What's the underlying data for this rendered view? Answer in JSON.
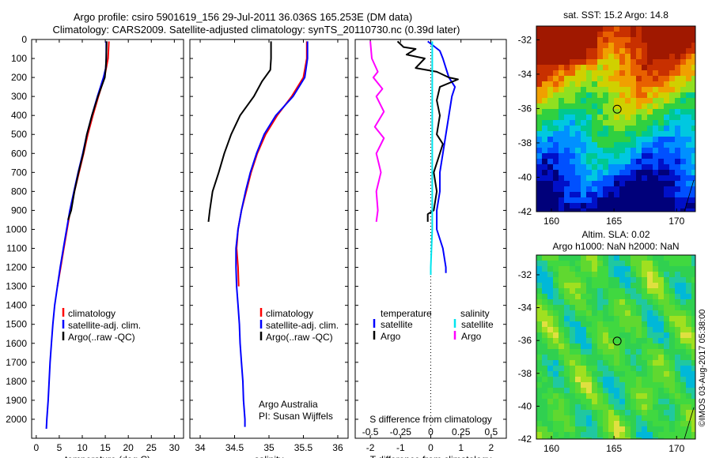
{
  "header": {
    "line1": "Argo profile: csiro 5901619_156 29-Jul-2011 36.036S 165.253E (DM data)",
    "line2": "Climatology: CARS2009. Satellite-adjusted climatology: synTS_20110730.nc (0.39d later)"
  },
  "colors": {
    "climatology": "#ff0000",
    "satellite": "#0000ff",
    "argo": "#000000",
    "t_satellite": "#0000ff",
    "s_satellite": "#00e5ee",
    "s_argo": "#ff00ff"
  },
  "chart_data": [
    {
      "type": "line",
      "panel": "temperature",
      "xlabel": "temperature (deg C)",
      "ylabel": "",
      "xlim": [
        -1,
        32
      ],
      "ylim": [
        2100,
        0
      ],
      "xticks": [
        "0",
        "5",
        "10",
        "15",
        "20",
        "25",
        "30"
      ],
      "yticks": [
        "0",
        "100",
        "200",
        "300",
        "400",
        "500",
        "600",
        "700",
        "800",
        "900",
        "1000",
        "1100",
        "1200",
        "1300",
        "1400",
        "1500",
        "1600",
        "1700",
        "1800",
        "1900",
        "2000"
      ],
      "legend": [
        "climatology",
        "satellite-adj. clim.",
        "Argo(..raw -QC)"
      ],
      "legend_position": "lower-right",
      "series": [
        {
          "name": "climatology",
          "color": "#ff0000",
          "points": [
            [
              15.8,
              10
            ],
            [
              15.6,
              100
            ],
            [
              15.2,
              150
            ],
            [
              14.8,
              200
            ],
            [
              13.5,
              300
            ],
            [
              12.3,
              400
            ],
            [
              11.2,
              500
            ],
            [
              10.3,
              600
            ],
            [
              9.3,
              700
            ],
            [
              8.3,
              800
            ],
            [
              7.4,
              900
            ],
            [
              6.7,
              1000
            ],
            [
              6,
              1100
            ],
            [
              5.3,
              1200
            ],
            [
              4.6,
              1300
            ]
          ]
        },
        {
          "name": "satellite-adj. clim.",
          "color": "#0000ff",
          "points": [
            [
              15.2,
              10
            ],
            [
              15.2,
              100
            ],
            [
              15.1,
              150
            ],
            [
              14.6,
              200
            ],
            [
              13.3,
              300
            ],
            [
              12.1,
              400
            ],
            [
              11,
              500
            ],
            [
              10.1,
              600
            ],
            [
              9.1,
              700
            ],
            [
              8.2,
              800
            ],
            [
              7.3,
              900
            ],
            [
              6.6,
              1000
            ],
            [
              5.9,
              1100
            ],
            [
              5.2,
              1200
            ],
            [
              4.6,
              1300
            ],
            [
              4,
              1400
            ],
            [
              3.6,
              1500
            ],
            [
              3.3,
              1600
            ],
            [
              3,
              1700
            ],
            [
              2.8,
              1800
            ],
            [
              2.6,
              1900
            ],
            [
              2.3,
              2000
            ],
            [
              2.2,
              2050
            ]
          ]
        },
        {
          "name": "Argo(..raw -QC)",
          "color": "#000000",
          "points": [
            [
              15.3,
              10
            ],
            [
              15.2,
              100
            ],
            [
              15.1,
              150
            ],
            [
              14.9,
              200
            ],
            [
              13.4,
              300
            ],
            [
              12.1,
              400
            ],
            [
              11,
              500
            ],
            [
              10.2,
              600
            ],
            [
              9.2,
              700
            ],
            [
              8.3,
              800
            ],
            [
              7.6,
              900
            ],
            [
              6.9,
              950
            ]
          ]
        }
      ]
    },
    {
      "type": "line",
      "panel": "salinity",
      "xlabel": "salinity",
      "ylabel": "",
      "xlim": [
        33.85,
        36.15
      ],
      "ylim": [
        2100,
        0
      ],
      "xticks": [
        "34",
        "34.5",
        "35",
        "35.5",
        "36"
      ],
      "legend": [
        "climatology",
        "satellite-adj. clim.",
        "Argo(..raw -QC)"
      ],
      "legend_position": "lower-right",
      "annotation": [
        "Argo Australia",
        "PI: Susan Wijffels"
      ],
      "series": [
        {
          "name": "climatology",
          "color": "#ff0000",
          "points": [
            [
              35.55,
              10
            ],
            [
              35.55,
              100
            ],
            [
              35.5,
              200
            ],
            [
              35.33,
              300
            ],
            [
              35.12,
              400
            ],
            [
              34.95,
              500
            ],
            [
              34.83,
              600
            ],
            [
              34.74,
              700
            ],
            [
              34.67,
              800
            ],
            [
              34.6,
              900
            ],
            [
              34.55,
              1000
            ],
            [
              34.53,
              1100
            ],
            [
              34.55,
              1200
            ],
            [
              34.56,
              1300
            ]
          ]
        },
        {
          "name": "satellite-adj. clim.",
          "color": "#0000ff",
          "points": [
            [
              35.56,
              10
            ],
            [
              35.56,
              100
            ],
            [
              35.52,
              200
            ],
            [
              35.35,
              300
            ],
            [
              35.1,
              400
            ],
            [
              34.93,
              500
            ],
            [
              34.82,
              600
            ],
            [
              34.73,
              700
            ],
            [
              34.66,
              800
            ],
            [
              34.6,
              900
            ],
            [
              34.55,
              1000
            ],
            [
              34.52,
              1100
            ],
            [
              34.52,
              1200
            ],
            [
              34.53,
              1300
            ],
            [
              34.55,
              1400
            ],
            [
              34.57,
              1500
            ],
            [
              34.58,
              1600
            ],
            [
              34.6,
              1700
            ],
            [
              34.62,
              1800
            ],
            [
              34.63,
              1900
            ],
            [
              34.65,
              2000
            ],
            [
              34.65,
              2040
            ]
          ]
        },
        {
          "name": "Argo(..raw -QC)",
          "color": "#000000",
          "points": [
            [
              35.03,
              10
            ],
            [
              35.03,
              100
            ],
            [
              35.02,
              160
            ],
            [
              34.9,
              220
            ],
            [
              34.78,
              300
            ],
            [
              34.58,
              400
            ],
            [
              34.45,
              500
            ],
            [
              34.35,
              600
            ],
            [
              34.27,
              700
            ],
            [
              34.18,
              800
            ],
            [
              34.14,
              900
            ],
            [
              34.12,
              960
            ]
          ]
        }
      ]
    },
    {
      "type": "line",
      "panel": "difference",
      "xlabel": "T difference from climatology",
      "xlabel_top": "S difference from climatology",
      "xlim": [
        -2.5,
        2.5
      ],
      "ylim": [
        2100,
        0
      ],
      "xticks": [
        "-2",
        "-1",
        "0",
        "1",
        "2"
      ],
      "xticks_top": [
        "-0.5",
        "-0.25",
        "0",
        "0.25",
        "0.5"
      ],
      "legend_headers": [
        "temperature",
        "salinity"
      ],
      "legend": [
        "satellite",
        "Argo",
        "satellite",
        "Argo"
      ],
      "legend_position": "lower",
      "series": [
        {
          "name": "satellite",
          "quantity": "temperature",
          "color": "#0000ff",
          "points": [
            [
              -0.1,
              10
            ],
            [
              0.3,
              60
            ],
            [
              0.4,
              100
            ],
            [
              0.5,
              150
            ],
            [
              0.6,
              200
            ],
            [
              0.8,
              250
            ],
            [
              0.7,
              300
            ],
            [
              0.6,
              400
            ],
            [
              0.5,
              500
            ],
            [
              0.4,
              600
            ],
            [
              0.3,
              700
            ],
            [
              0.3,
              800
            ],
            [
              0.2,
              900
            ],
            [
              0.2,
              1000
            ],
            [
              0.4,
              1100
            ],
            [
              0.5,
              1200
            ],
            [
              0.5,
              1230
            ]
          ]
        },
        {
          "name": "Argo",
          "quantity": "temperature",
          "color": "#000000",
          "points": [
            [
              -1.1,
              10
            ],
            [
              -0.9,
              40
            ],
            [
              -0.5,
              50
            ],
            [
              -0.8,
              80
            ],
            [
              -0.2,
              100
            ],
            [
              -0.5,
              150
            ],
            [
              0.2,
              170
            ],
            [
              0.6,
              200
            ],
            [
              0.9,
              210
            ],
            [
              0.3,
              250
            ],
            [
              0.2,
              320
            ],
            [
              0.3,
              400
            ],
            [
              0.2,
              500
            ],
            [
              0.4,
              550
            ],
            [
              0.3,
              600
            ],
            [
              0.1,
              700
            ],
            [
              0.2,
              800
            ],
            [
              0.1,
              900
            ],
            [
              -0.1,
              920
            ],
            [
              -0.1,
              960
            ]
          ]
        },
        {
          "name": "satellite",
          "quantity": "salinity",
          "color": "#00e5ee",
          "points": [
            [
              0.05,
              10
            ],
            [
              0.05,
              100
            ],
            [
              0.05,
              200
            ],
            [
              0.05,
              400
            ],
            [
              0.05,
              600
            ],
            [
              0.05,
              800
            ],
            [
              0.05,
              1000
            ],
            [
              0.0,
              1200
            ],
            [
              0.0,
              1240
            ]
          ]
        },
        {
          "name": "Argo",
          "quantity": "salinity",
          "color": "#ff00ff",
          "points": [
            [
              -2.0,
              10
            ],
            [
              -1.95,
              100
            ],
            [
              -1.75,
              170
            ],
            [
              -1.9,
              200
            ],
            [
              -1.6,
              260
            ],
            [
              -1.8,
              300
            ],
            [
              -1.55,
              380
            ],
            [
              -1.7,
              420
            ],
            [
              -1.85,
              460
            ],
            [
              -1.55,
              520
            ],
            [
              -1.8,
              600
            ],
            [
              -1.65,
              700
            ],
            [
              -1.8,
              800
            ],
            [
              -1.75,
              900
            ],
            [
              -1.8,
              960
            ]
          ]
        }
      ]
    },
    {
      "type": "heatmap",
      "panel": "sst-map",
      "title": "sat. SST: 15.2 Argo: 14.8",
      "xticks": [
        "160",
        "165",
        "170"
      ],
      "yticks": [
        "-32",
        "-34",
        "-36",
        "-38",
        "-40",
        "-42"
      ],
      "xlim": [
        158.8,
        171.5
      ],
      "ylim": [
        -42,
        -31.2
      ],
      "marker": {
        "lon": 165.253,
        "lat": -36.036
      }
    },
    {
      "type": "heatmap",
      "panel": "sla-map",
      "title": [
        "Altim. SLA: 0.02",
        "Argo h1000: NaN h2000: NaN"
      ],
      "xticks": [
        "160",
        "165",
        "170"
      ],
      "yticks": [
        "-32",
        "-34",
        "-36",
        "-38",
        "-40",
        "-42"
      ],
      "xlim": [
        158.8,
        171.5
      ],
      "ylim": [
        -42,
        -30.8
      ],
      "marker": {
        "lon": 165.253,
        "lat": -36.036
      }
    }
  ],
  "side_text": "©IMOS 03-Aug-2017 05:38:00"
}
